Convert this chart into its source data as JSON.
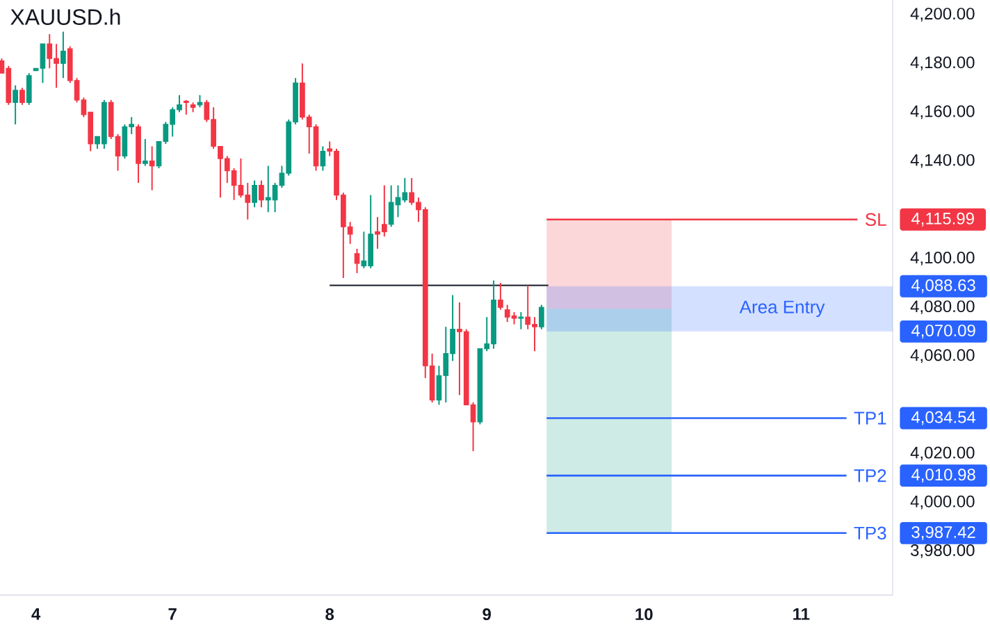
{
  "chart_data": {
    "type": "candlestick",
    "title": "XAUUSD.h",
    "categories": [
      null,
      null,
      null,
      null,
      null,
      "4",
      null,
      null,
      null,
      null,
      null,
      null,
      null,
      null,
      null,
      null,
      null,
      null,
      null,
      null,
      null,
      null,
      null,
      null,
      null,
      "7",
      null,
      null,
      null,
      null,
      null,
      null,
      null,
      null,
      null,
      null,
      null,
      null,
      null,
      null,
      null,
      null,
      null,
      null,
      null,
      null,
      null,
      null,
      "8",
      null,
      null,
      null,
      null,
      null,
      null,
      null,
      null,
      null,
      null,
      null,
      null,
      null,
      null,
      null,
      null,
      null,
      null,
      null,
      null,
      null,
      null,
      "9",
      null,
      null,
      null,
      null,
      null,
      null,
      null,
      null,
      null,
      null,
      null,
      null,
      null,
      null,
      null,
      null,
      null,
      null,
      null,
      null,
      null,
      null,
      "10",
      null,
      null,
      null,
      null,
      null,
      null,
      null,
      null,
      null,
      null,
      null,
      null,
      null,
      null,
      null,
      null,
      null,
      null,
      null,
      null,
      null,
      null,
      "11",
      null,
      null,
      null,
      null,
      null,
      null,
      null,
      null,
      null,
      null,
      null,
      null,
      null
    ],
    "ylim": [
      3962,
      4206
    ],
    "yticks": [
      {
        "value": 3980,
        "label": "3,980.00"
      },
      {
        "value": 4000,
        "label": "4,000.00"
      },
      {
        "value": 4020,
        "label": "4,020.00"
      },
      {
        "value": 4060,
        "label": "4,060.00"
      },
      {
        "value": 4080,
        "label": "4,080.00"
      },
      {
        "value": 4100,
        "label": "4,100.00"
      },
      {
        "value": 4140,
        "label": "4,140.00"
      },
      {
        "value": 4160,
        "label": "4,160.00"
      },
      {
        "value": 4180,
        "label": "4,180.00"
      },
      {
        "value": 4200,
        "label": "4,200.00"
      }
    ],
    "series": [
      {
        "ohlc": [
          [
            4181,
            4182,
            4176,
            4176
          ],
          [
            4178,
            4179,
            4163,
            4164
          ],
          [
            4164,
            4171,
            4155,
            4169
          ],
          [
            4169,
            4170,
            4163,
            4164
          ],
          [
            4164,
            4176,
            4163,
            4175
          ],
          [
            4177,
            4178,
            4177,
            4178
          ],
          [
            4178,
            4188,
            4172,
            4188
          ],
          [
            4188,
            4192,
            4178,
            4182
          ],
          [
            4182,
            4188,
            4170,
            4180
          ],
          [
            4180,
            4193,
            4174,
            4185
          ],
          [
            4186,
            4187,
            4172,
            4173
          ],
          [
            4173,
            4174,
            4164,
            4165
          ],
          [
            4165,
            4166,
            4158,
            4159
          ],
          [
            4160,
            4160,
            4144,
            4147
          ],
          [
            4147,
            4150,
            4145,
            4150
          ],
          [
            4147,
            4165,
            4145,
            4164
          ],
          [
            4164,
            4165,
            4149,
            4150
          ],
          [
            4150,
            4151,
            4136,
            4142
          ],
          [
            4142,
            4155,
            4141,
            4154
          ],
          [
            4154,
            4158,
            4151,
            4155
          ],
          [
            4154,
            4155,
            4131,
            4139
          ],
          [
            4139,
            4149,
            4138,
            4140
          ],
          [
            4140,
            4146,
            4128,
            4138
          ],
          [
            4138,
            4148,
            4137,
            4148
          ],
          [
            4148,
            4156,
            4147,
            4155
          ],
          [
            4155,
            4162,
            4150,
            4161
          ],
          [
            4161,
            4167,
            4160,
            4163
          ],
          [
            4164.5,
            4165,
            4159,
            4164
          ],
          [
            4163,
            4164,
            4160,
            4162
          ],
          [
            4163,
            4167,
            4162,
            4164
          ],
          [
            4164,
            4165,
            4156,
            4157
          ],
          [
            4157,
            4162,
            4145,
            4146
          ],
          [
            4146,
            4146,
            4125,
            4141
          ],
          [
            4141,
            4142,
            4131,
            4136
          ],
          [
            4136,
            4137,
            4124,
            4130
          ],
          [
            4130,
            4141,
            4125,
            4126
          ],
          [
            4126,
            4131,
            4116,
            4123
          ],
          [
            4123,
            4132,
            4121,
            4130
          ],
          [
            4130,
            4132,
            4121,
            4124
          ],
          [
            4124,
            4138,
            4119,
            4125
          ],
          [
            4124,
            4131,
            4119,
            4130
          ],
          [
            4130,
            4138,
            4129,
            4135
          ],
          [
            4135,
            4157,
            4134,
            4156
          ],
          [
            4156,
            4174,
            4155,
            4172
          ],
          [
            4172,
            4180,
            4157,
            4158
          ],
          [
            4158,
            4159,
            4143,
            4154
          ],
          [
            4154,
            4155,
            4136,
            4138
          ],
          [
            4138,
            4146,
            4136,
            4144
          ],
          [
            4145,
            4148,
            4142,
            4144
          ],
          [
            4144,
            4145,
            4124,
            4126
          ],
          [
            4126,
            4127,
            4092,
            4113
          ],
          [
            4113,
            4115,
            4106,
            4110
          ],
          [
            4102,
            4104,
            4094,
            4098
          ],
          [
            4097,
            4111,
            4096,
            4099
          ],
          [
            4097,
            4126,
            4096,
            4110
          ],
          [
            4111,
            4117,
            4104,
            4110
          ],
          [
            4114,
            4130,
            4109,
            4111
          ],
          [
            4114,
            4130,
            4113,
            4123
          ],
          [
            4122,
            4130,
            4117,
            4125
          ],
          [
            4124,
            4133,
            4123,
            4127
          ],
          [
            4127,
            4133,
            4122,
            4123
          ],
          [
            4123,
            4125,
            4115,
            4120
          ],
          [
            4120,
            4121,
            4051,
            4056
          ],
          [
            4056,
            4061,
            4041,
            4042
          ],
          [
            4042,
            4056,
            4040,
            4052
          ],
          [
            4052,
            4072,
            4041,
            4061
          ],
          [
            4061,
            4085,
            4058,
            4071
          ],
          [
            4071,
            4082,
            4044,
            4070
          ],
          [
            4070,
            4071,
            4040,
            4040
          ],
          [
            4040,
            4041,
            4021,
            4033
          ],
          [
            4033,
            4063,
            4032,
            4063
          ],
          [
            4063,
            4076,
            4062,
            4065
          ],
          [
            4065,
            4091,
            4063,
            4083
          ],
          [
            4083,
            4090,
            4079,
            4080
          ],
          [
            4079,
            4081,
            4074,
            4076
          ],
          [
            4076.5,
            4078,
            4073,
            4075.5
          ],
          [
            4075.5,
            4078,
            4071,
            4076
          ],
          [
            4076,
            4089,
            4071,
            4073
          ],
          [
            4073,
            4076,
            4062,
            4072
          ],
          [
            4072,
            4081,
            4071,
            4080
          ],
          null,
          null,
          null,
          null,
          null,
          null,
          null,
          null,
          null,
          null,
          null,
          null,
          null,
          null,
          null,
          null,
          null,
          null,
          null,
          null,
          null,
          null,
          null,
          null,
          null,
          null,
          null,
          null,
          null,
          null,
          null,
          null,
          null,
          null,
          null,
          null,
          null,
          null,
          null,
          null,
          null,
          null,
          null,
          null,
          null,
          null,
          null,
          null,
          null,
          null,
          null
        ],
        "colors": [
          "#f23645",
          "#f23645",
          "#089981",
          "#f23645",
          "#089981",
          "#089981",
          "#089981",
          "#f23645",
          "#f23645",
          "#089981",
          "#f23645",
          "#f23645",
          "#f23645",
          "#f23645",
          "#089981",
          "#089981",
          "#f23645",
          "#f23645",
          "#089981",
          "#089981",
          "#f23645",
          "#089981",
          "#f23645",
          "#089981",
          "#089981",
          "#089981",
          "#089981",
          "#f23645",
          "#f23645",
          "#089981",
          "#f23645",
          "#f23645",
          "#f23645",
          "#f23645",
          "#f23645",
          "#f23645",
          "#f23645",
          "#089981",
          "#f23645",
          "#089981",
          "#089981",
          "#089981",
          "#089981",
          "#089981",
          "#f23645",
          "#f23645",
          "#f23645",
          "#089981",
          "#f23645",
          "#f23645",
          "#f23645",
          "#f23645",
          "#f23645",
          "#089981",
          "#089981",
          "#f23645",
          "#f23645",
          "#089981",
          "#089981",
          "#089981",
          "#f23645",
          "#f23645",
          "#f23645",
          "#f23645",
          "#089981",
          "#089981",
          "#089981",
          "#f23645",
          "#f23645",
          "#f23645",
          "#089981",
          "#089981",
          "#089981",
          "#f23645",
          "#f23645",
          "#f23645",
          "#089981",
          "#f23645",
          "#f23645",
          "#089981",
          null,
          null,
          null,
          null,
          null,
          null,
          null,
          null,
          null,
          null,
          null,
          null,
          null,
          null,
          null,
          null,
          null,
          null,
          null,
          null,
          null,
          null,
          null,
          null,
          null,
          null,
          null,
          null,
          null,
          null,
          null,
          null,
          null,
          null,
          null,
          null,
          null,
          null,
          null,
          null,
          null,
          null,
          null,
          null,
          null,
          null,
          null,
          null,
          null,
          null,
          null
        ]
      },
      {
        "type": "line",
        "color": "#131722",
        "values": [
          null,
          null,
          null,
          null,
          null,
          null,
          null,
          null,
          null,
          null,
          null,
          null,
          null,
          null,
          null,
          null,
          null,
          null,
          null,
          null,
          null,
          null,
          null,
          null,
          null,
          null,
          null,
          null,
          null,
          null,
          null,
          null,
          null,
          null,
          null,
          null,
          null,
          null,
          null,
          null,
          null,
          null,
          null,
          null,
          null,
          null,
          null,
          null,
          4089,
          4089,
          4089,
          4089,
          4089,
          4089,
          4089,
          4089,
          4089,
          4089,
          4089,
          4089,
          4089,
          4089,
          4089,
          4089,
          4089,
          4089,
          4089,
          4089,
          4089,
          4089,
          4089,
          4089,
          4089,
          4089,
          4089,
          4089,
          4089,
          4089,
          4089,
          4089,
          4089,
          null,
          null,
          null,
          null,
          null,
          null,
          null,
          null,
          null,
          null,
          null,
          null,
          null,
          null,
          null,
          null,
          null,
          null,
          null,
          null,
          null,
          null,
          null,
          null,
          null,
          null,
          null,
          null,
          null,
          null,
          null,
          null,
          null,
          null,
          null,
          null,
          null,
          null,
          null,
          null,
          null,
          null,
          null,
          null,
          null,
          null,
          null,
          null,
          null,
          null
        ]
      }
    ],
    "bands": [
      {
        "axis": "y",
        "from": 4079.4,
        "to": 4115.99,
        "color": "#f23645"
      },
      {
        "axis": "y",
        "from": 3987.42,
        "to": 4079.4,
        "color": "#089981"
      },
      {
        "axis": "y",
        "from": 4070.09,
        "to": 4088.63,
        "label": "Area Entry",
        "color": "#2962ff"
      }
    ],
    "ref_lines": [
      {
        "axis": "y",
        "value": 4115.99,
        "label": "SL",
        "color": "#f23645"
      },
      {
        "axis": "y",
        "value": 4034.54,
        "label": "TP1",
        "color": "#2962ff"
      },
      {
        "axis": "y",
        "value": 4010.98,
        "label": "TP2",
        "color": "#2962ff"
      },
      {
        "axis": "y",
        "value": 3987.42,
        "label": "TP3",
        "color": "#2962ff"
      }
    ],
    "annotations": [
      "4,115.99",
      "4,088.63",
      "4,070.09",
      "4,034.54",
      "4,010.98",
      "3,987.42"
    ]
  }
}
